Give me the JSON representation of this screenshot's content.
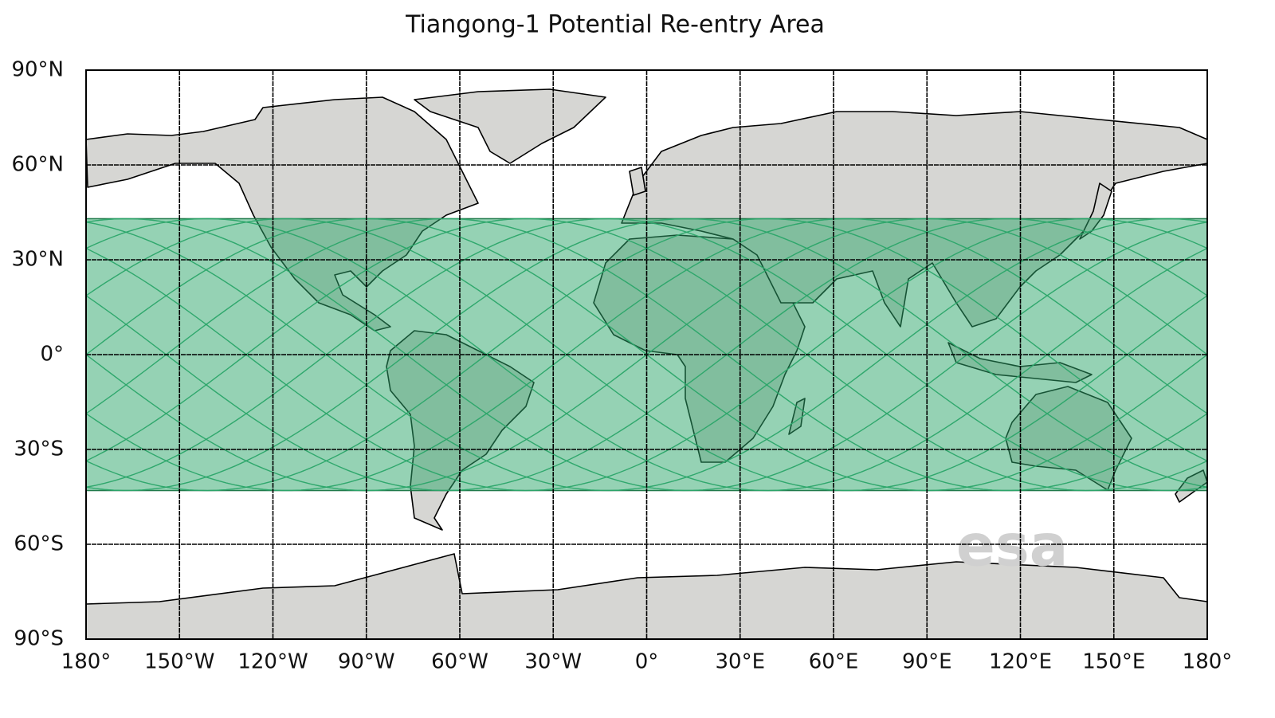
{
  "map": {
    "title": "Tiangong-1 Potential Re-entry Area",
    "xlim": [
      -180,
      180
    ],
    "ylim": [
      -90,
      90
    ],
    "xticks": [
      {
        "value": -180,
        "label": "180°"
      },
      {
        "value": -150,
        "label": "150°W"
      },
      {
        "value": -120,
        "label": "120°W"
      },
      {
        "value": -90,
        "label": "90°W"
      },
      {
        "value": -60,
        "label": "60°W"
      },
      {
        "value": -30,
        "label": "30°W"
      },
      {
        "value": 0,
        "label": "0°"
      },
      {
        "value": 30,
        "label": "30°E"
      },
      {
        "value": 60,
        "label": "60°E"
      },
      {
        "value": 90,
        "label": "90°E"
      },
      {
        "value": 120,
        "label": "120°E"
      },
      {
        "value": 150,
        "label": "150°E"
      },
      {
        "value": 180,
        "label": "180°"
      }
    ],
    "yticks": [
      {
        "value": 90,
        "label": "90°N"
      },
      {
        "value": 60,
        "label": "60°N"
      },
      {
        "value": 30,
        "label": "30°N"
      },
      {
        "value": 0,
        "label": "0°"
      },
      {
        "value": -30,
        "label": "30°S"
      },
      {
        "value": -60,
        "label": "60°S"
      },
      {
        "value": -90,
        "label": "90°S"
      }
    ],
    "grid": true,
    "band": {
      "lat_min": -43,
      "lat_max": 43,
      "color": "#2ca66a"
    },
    "watermark": "esa"
  }
}
